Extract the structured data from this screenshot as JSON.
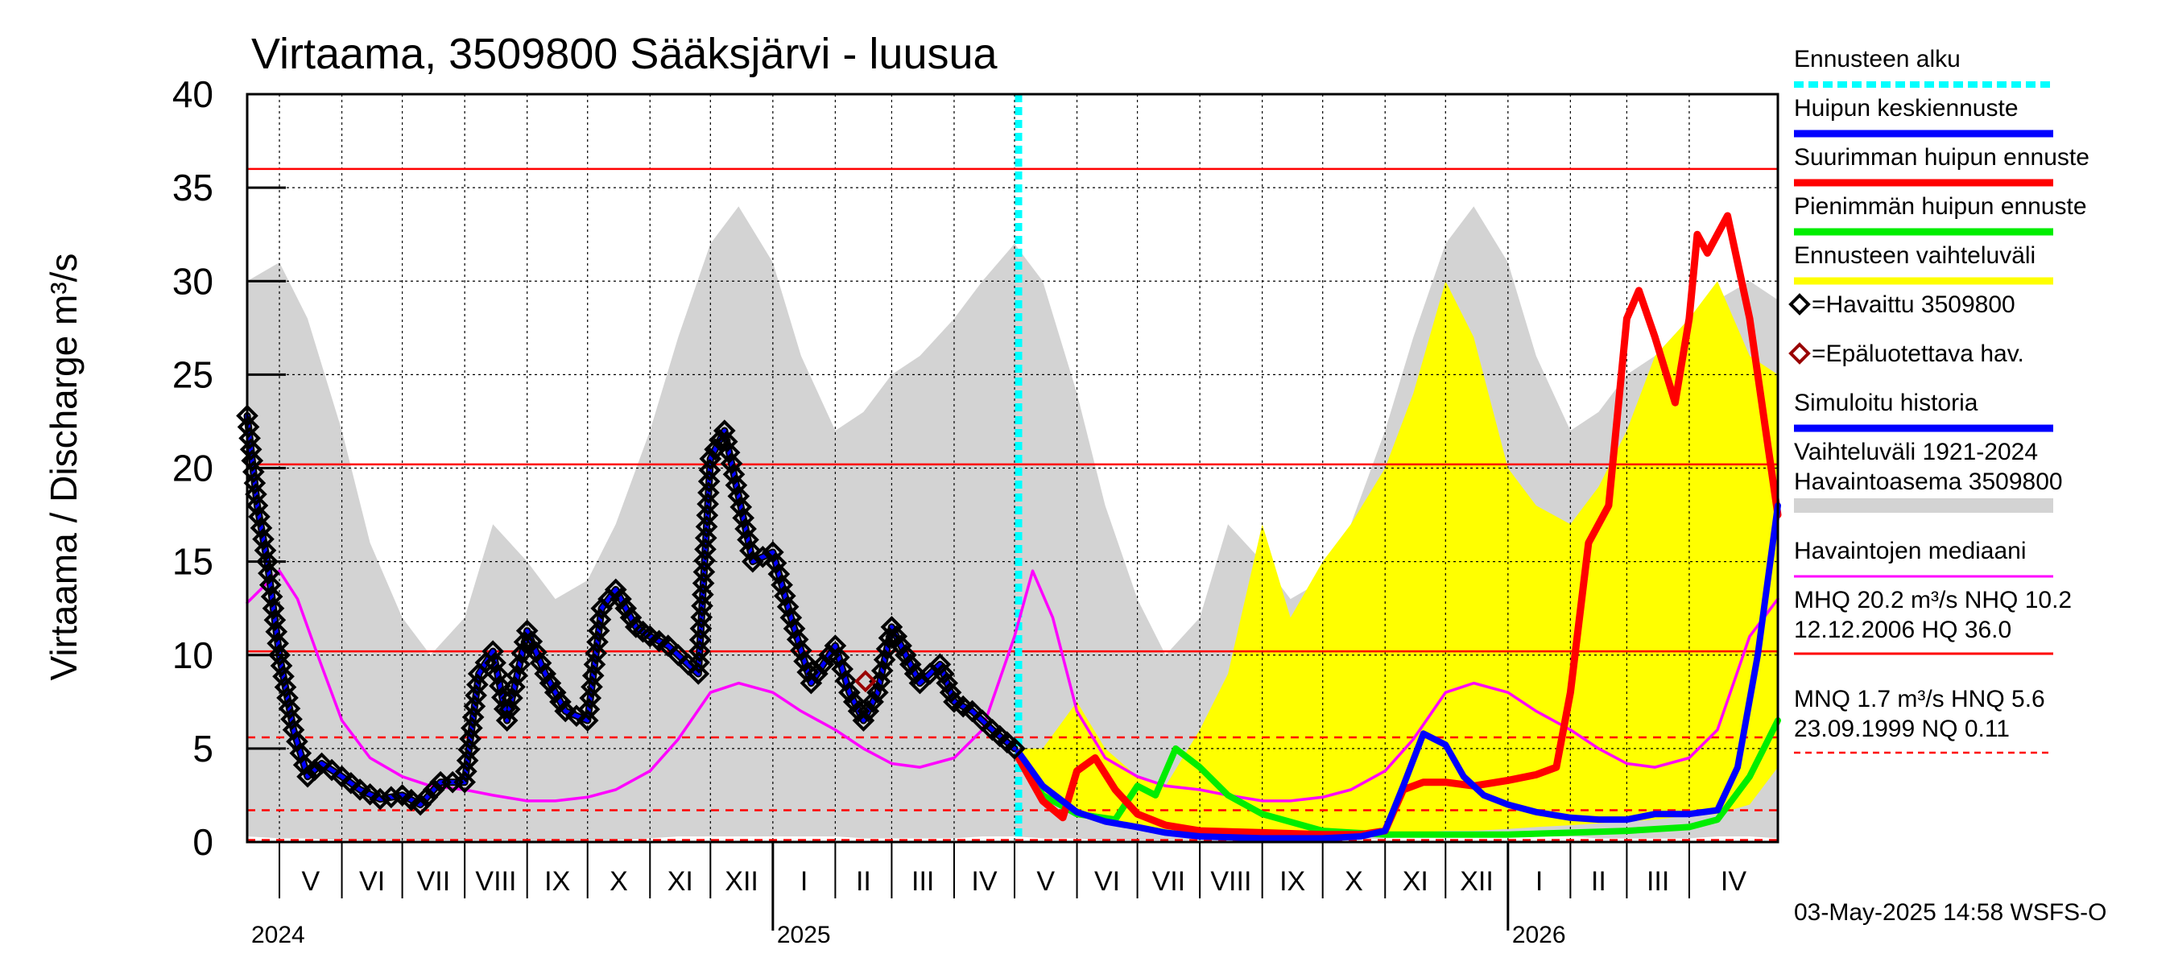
{
  "chart_data": {
    "type": "line",
    "title": "Virtaama, 3509800 Sääksjärvi - luusua",
    "ylabel": "Virtaama / Discharge    m³/s",
    "ylim": [
      0,
      40
    ],
    "yticks": [
      0,
      5,
      10,
      15,
      20,
      25,
      30,
      35,
      40
    ],
    "x_range": [
      "2024-04-15",
      "2026-05-15"
    ],
    "months": [
      {
        "label": "V",
        "start": "2024-05-01"
      },
      {
        "label": "VI",
        "start": "2024-06-01"
      },
      {
        "label": "VII",
        "start": "2024-07-01"
      },
      {
        "label": "VIII",
        "start": "2024-08-01"
      },
      {
        "label": "IX",
        "start": "2024-09-01"
      },
      {
        "label": "X",
        "start": "2024-10-01"
      },
      {
        "label": "XI",
        "start": "2024-11-01"
      },
      {
        "label": "XII",
        "start": "2024-12-01"
      },
      {
        "label": "I",
        "start": "2025-01-01"
      },
      {
        "label": "II",
        "start": "2025-02-01"
      },
      {
        "label": "III",
        "start": "2025-03-01"
      },
      {
        "label": "IV",
        "start": "2025-04-01"
      },
      {
        "label": "V",
        "start": "2025-05-01"
      },
      {
        "label": "VI",
        "start": "2025-06-01"
      },
      {
        "label": "VII",
        "start": "2025-07-01"
      },
      {
        "label": "VIII",
        "start": "2025-08-01"
      },
      {
        "label": "IX",
        "start": "2025-09-01"
      },
      {
        "label": "X",
        "start": "2025-10-01"
      },
      {
        "label": "XI",
        "start": "2025-11-01"
      },
      {
        "label": "XII",
        "start": "2025-12-01"
      },
      {
        "label": "I",
        "start": "2026-01-01"
      },
      {
        "label": "II",
        "start": "2026-02-01"
      },
      {
        "label": "III",
        "start": "2026-03-01"
      },
      {
        "label": "IV",
        "start": "2026-04-01"
      }
    ],
    "years": [
      {
        "label": "2024",
        "date": "2024-04-15"
      },
      {
        "label": "2025",
        "date": "2025-01-01"
      },
      {
        "label": "2026",
        "date": "2026-01-01"
      }
    ],
    "forecast_start": "2025-05-03",
    "reference_lines": [
      {
        "name": "HQ",
        "value": 36.0,
        "style": "solid"
      },
      {
        "name": "MHQ",
        "value": 20.2,
        "style": "solid"
      },
      {
        "name": "NHQ",
        "value": 10.2,
        "style": "solid"
      },
      {
        "name": "HNQ",
        "value": 5.6,
        "style": "dashed"
      },
      {
        "name": "MNQ",
        "value": 1.7,
        "style": "dashed"
      },
      {
        "name": "NQ",
        "value": 0.11,
        "style": "dashed"
      }
    ],
    "series": [
      {
        "name": "Vaihteluväli 1921-2024 Havaintoasema 3509800",
        "type": "band",
        "color": "#d3d3d3",
        "x": [
          "2024-04-15",
          "2024-05-01",
          "2024-05-15",
          "2024-06-01",
          "2024-06-15",
          "2024-07-01",
          "2024-07-15",
          "2024-08-01",
          "2024-08-15",
          "2024-09-01",
          "2024-09-15",
          "2024-10-01",
          "2024-10-15",
          "2024-11-01",
          "2024-11-15",
          "2024-12-01",
          "2024-12-15",
          "2025-01-01",
          "2025-01-15",
          "2025-02-01",
          "2025-02-15",
          "2025-03-01",
          "2025-03-15",
          "2025-04-01",
          "2025-04-15",
          "2025-05-01",
          "2025-05-15",
          "2025-06-01",
          "2025-06-15",
          "2025-07-01",
          "2025-07-15",
          "2025-08-01",
          "2025-08-15",
          "2025-09-01",
          "2025-09-15",
          "2025-10-01",
          "2025-10-15",
          "2025-11-01",
          "2025-11-15",
          "2025-12-01",
          "2025-12-15",
          "2026-01-01",
          "2026-01-15",
          "2026-02-01",
          "2026-02-15",
          "2026-03-01",
          "2026-03-15",
          "2026-04-01",
          "2026-04-15",
          "2026-05-01",
          "2026-05-15"
        ],
        "low": [
          0.3,
          0.2,
          0.2,
          0.1,
          0.1,
          0.1,
          0.1,
          0.1,
          0.1,
          0.0,
          0.0,
          0.1,
          0.1,
          0.2,
          0.3,
          0.3,
          0.3,
          0.3,
          0.3,
          0.3,
          0.2,
          0.2,
          0.2,
          0.2,
          0.3,
          0.3,
          0.2,
          0.2,
          0.1,
          0.1,
          0.1,
          0.1,
          0.1,
          0.0,
          0.0,
          0.1,
          0.1,
          0.2,
          0.3,
          0.3,
          0.3,
          0.3,
          0.3,
          0.3,
          0.2,
          0.2,
          0.2,
          0.2,
          0.3,
          0.3,
          0.2
        ],
        "high": [
          30.0,
          31.0,
          28.0,
          22.0,
          16.0,
          12.0,
          10.0,
          12.0,
          17.0,
          15.0,
          13.0,
          14.0,
          17.0,
          22.0,
          27.0,
          32.0,
          34.0,
          31.0,
          26.0,
          22.0,
          23.0,
          25.0,
          26.0,
          28.0,
          30.0,
          32.0,
          30.0,
          24.0,
          18.0,
          13.0,
          10.0,
          12.0,
          17.0,
          15.0,
          13.0,
          14.0,
          17.0,
          22.0,
          27.0,
          32.0,
          34.0,
          31.0,
          26.0,
          22.0,
          23.0,
          25.0,
          26.0,
          28.0,
          29.0,
          30.0,
          29.0
        ]
      },
      {
        "name": "Ennusteen vaihteluväli",
        "type": "band",
        "color": "#ffff00",
        "x": [
          "2025-05-03",
          "2025-05-15",
          "2025-06-01",
          "2025-06-15",
          "2025-07-01",
          "2025-07-15",
          "2025-08-01",
          "2025-08-15",
          "2025-09-01",
          "2025-09-15",
          "2025-10-01",
          "2025-10-15",
          "2025-11-01",
          "2025-11-15",
          "2025-12-01",
          "2025-12-15",
          "2026-01-01",
          "2026-01-15",
          "2026-02-01",
          "2026-02-15",
          "2026-03-01",
          "2026-03-15",
          "2026-04-01",
          "2026-04-15",
          "2026-05-01",
          "2026-05-15"
        ],
        "low": [
          4.8,
          2.5,
          1.5,
          1.0,
          0.8,
          0.6,
          0.5,
          0.5,
          0.4,
          0.4,
          0.4,
          0.5,
          0.5,
          0.5,
          0.6,
          0.6,
          0.7,
          0.8,
          0.9,
          1.0,
          1.1,
          1.2,
          1.4,
          1.5,
          2.0,
          4.0
        ],
        "high": [
          5.0,
          5.0,
          7.5,
          5.0,
          3.5,
          3.0,
          6.0,
          9.0,
          17.0,
          12.0,
          15.0,
          17.0,
          20.0,
          24.0,
          30.0,
          27.0,
          20.0,
          18.0,
          17.0,
          19.0,
          22.0,
          26.0,
          28.0,
          30.0,
          26.0,
          25.0
        ]
      },
      {
        "name": "Havaintojen mediaani",
        "color": "#ff00ff",
        "x": [
          "2024-04-15",
          "2024-05-01",
          "2024-05-10",
          "2024-05-20",
          "2024-06-01",
          "2024-06-15",
          "2024-07-01",
          "2024-07-15",
          "2024-08-01",
          "2024-08-15",
          "2024-09-01",
          "2024-09-15",
          "2024-10-01",
          "2024-10-15",
          "2024-11-01",
          "2024-11-15",
          "2024-12-01",
          "2024-12-15",
          "2025-01-01",
          "2025-01-15",
          "2025-02-01",
          "2025-02-15",
          "2025-03-01",
          "2025-03-15",
          "2025-04-01",
          "2025-04-15",
          "2025-05-01",
          "2025-05-10",
          "2025-05-20",
          "2025-06-01",
          "2025-06-15",
          "2025-07-01",
          "2025-07-15",
          "2025-08-01",
          "2025-08-15",
          "2025-09-01",
          "2025-09-15",
          "2025-10-01",
          "2025-10-15",
          "2025-11-01",
          "2025-11-15",
          "2025-12-01",
          "2025-12-15",
          "2026-01-01",
          "2026-01-15",
          "2026-02-01",
          "2026-02-15",
          "2026-03-01",
          "2026-03-15",
          "2026-04-01",
          "2026-04-15",
          "2026-05-01",
          "2026-05-15"
        ],
        "values": [
          12.8,
          14.5,
          13.0,
          10.0,
          6.5,
          4.5,
          3.5,
          3.0,
          2.8,
          2.5,
          2.2,
          2.2,
          2.4,
          2.8,
          3.8,
          5.5,
          8.0,
          8.5,
          8.0,
          7.0,
          6.0,
          5.0,
          4.2,
          4.0,
          4.5,
          6.0,
          11.0,
          14.5,
          12.0,
          7.0,
          4.5,
          3.5,
          3.0,
          2.8,
          2.5,
          2.2,
          2.2,
          2.4,
          2.8,
          3.8,
          5.5,
          8.0,
          8.5,
          8.0,
          7.0,
          6.0,
          5.0,
          4.2,
          4.0,
          4.5,
          6.0,
          11.0,
          13.0
        ]
      },
      {
        "name": "Havaittu 3509800",
        "color": "#000000",
        "marker": "diamond",
        "x": [
          "2024-04-15",
          "2024-04-20",
          "2024-04-25",
          "2024-05-01",
          "2024-05-08",
          "2024-05-15",
          "2024-05-22",
          "2024-06-01",
          "2024-06-10",
          "2024-06-20",
          "2024-07-01",
          "2024-07-10",
          "2024-07-20",
          "2024-08-01",
          "2024-08-08",
          "2024-08-15",
          "2024-08-22",
          "2024-09-01",
          "2024-09-10",
          "2024-09-20",
          "2024-10-01",
          "2024-10-08",
          "2024-10-15",
          "2024-10-25",
          "2024-11-01",
          "2024-11-10",
          "2024-11-20",
          "2024-11-25",
          "2024-12-01",
          "2024-12-08",
          "2024-12-15",
          "2024-12-22",
          "2025-01-01",
          "2025-01-10",
          "2025-01-20",
          "2025-02-01",
          "2025-02-08",
          "2025-02-15",
          "2025-02-22",
          "2025-03-01",
          "2025-03-08",
          "2025-03-15",
          "2025-03-25",
          "2025-04-01",
          "2025-04-10",
          "2025-04-20",
          "2025-05-01"
        ],
        "values": [
          22.8,
          18.0,
          15.0,
          10.0,
          6.0,
          3.5,
          4.2,
          3.5,
          2.8,
          2.3,
          2.5,
          2.0,
          3.2,
          3.2,
          9.0,
          10.2,
          6.5,
          11.3,
          9.0,
          7.0,
          6.5,
          12.5,
          13.5,
          11.5,
          11.0,
          10.5,
          9.5,
          9.0,
          20.5,
          22.0,
          18.5,
          15.0,
          15.5,
          12.0,
          8.5,
          10.5,
          8.0,
          6.5,
          8.0,
          11.5,
          10.0,
          8.5,
          9.5,
          7.5,
          7.0,
          6.0,
          5.0
        ]
      },
      {
        "name": "Epäluotettava hav.",
        "color": "#990000",
        "marker": "diamond",
        "x": [
          "2025-02-16"
        ],
        "values": [
          8.6
        ]
      },
      {
        "name": "Simuloitu historia",
        "color": "#0000ff",
        "x": [
          "2024-04-15",
          "2024-04-20",
          "2024-04-25",
          "2024-05-01",
          "2024-05-08",
          "2024-05-15",
          "2024-05-22",
          "2024-06-01",
          "2024-06-10",
          "2024-06-20",
          "2024-07-01",
          "2024-07-10",
          "2024-07-20",
          "2024-08-01",
          "2024-08-08",
          "2024-08-15",
          "2024-08-22",
          "2024-09-01",
          "2024-09-10",
          "2024-09-20",
          "2024-10-01",
          "2024-10-08",
          "2024-10-15",
          "2024-10-25",
          "2024-11-01",
          "2024-11-10",
          "2024-11-20",
          "2024-11-25",
          "2024-12-01",
          "2024-12-08",
          "2024-12-15",
          "2024-12-22",
          "2025-01-01",
          "2025-01-10",
          "2025-01-20",
          "2025-02-01",
          "2025-02-08",
          "2025-02-15",
          "2025-02-22",
          "2025-03-01",
          "2025-03-08",
          "2025-03-15",
          "2025-03-25",
          "2025-04-01",
          "2025-04-10",
          "2025-04-20",
          "2025-05-01"
        ],
        "values": [
          22.8,
          18.0,
          15.0,
          10.0,
          6.0,
          3.5,
          4.2,
          3.5,
          2.8,
          2.3,
          2.5,
          2.0,
          3.2,
          3.2,
          9.0,
          10.2,
          6.5,
          11.3,
          9.0,
          7.0,
          6.5,
          12.5,
          13.5,
          11.5,
          11.0,
          10.5,
          9.5,
          9.0,
          20.5,
          22.0,
          18.5,
          15.0,
          15.5,
          12.0,
          8.5,
          10.5,
          8.0,
          6.5,
          8.0,
          11.5,
          10.0,
          8.5,
          9.5,
          7.5,
          7.0,
          6.0,
          5.0
        ]
      },
      {
        "name": "Suurimman huipun ennuste",
        "color": "#ff0000",
        "x": [
          "2025-05-03",
          "2025-05-15",
          "2025-05-25",
          "2025-06-01",
          "2025-06-10",
          "2025-06-20",
          "2025-07-01",
          "2025-07-15",
          "2025-08-01",
          "2025-09-01",
          "2025-10-01",
          "2025-10-20",
          "2025-11-01",
          "2025-11-10",
          "2025-11-20",
          "2025-12-01",
          "2025-12-15",
          "2026-01-01",
          "2026-01-15",
          "2026-01-25",
          "2026-02-01",
          "2026-02-10",
          "2026-02-20",
          "2026-03-01",
          "2026-03-07",
          "2026-03-15",
          "2026-03-25",
          "2026-04-01",
          "2026-04-05",
          "2026-04-10",
          "2026-04-20",
          "2026-05-01",
          "2026-05-15"
        ],
        "values": [
          4.5,
          2.2,
          1.3,
          3.8,
          4.5,
          2.8,
          1.5,
          0.9,
          0.6,
          0.5,
          0.4,
          0.4,
          0.6,
          2.8,
          3.2,
          3.2,
          3.0,
          3.3,
          3.6,
          4.0,
          8.0,
          16.0,
          18.0,
          28.0,
          29.5,
          27.0,
          23.5,
          28.0,
          32.5,
          31.5,
          33.5,
          28.0,
          17.5
        ]
      },
      {
        "name": "Pienimmän huipun ennuste",
        "color": "#00ee00",
        "x": [
          "2025-05-03",
          "2025-05-15",
          "2025-06-01",
          "2025-06-20",
          "2025-07-01",
          "2025-07-10",
          "2025-07-20",
          "2025-08-01",
          "2025-08-15",
          "2025-09-01",
          "2025-10-01",
          "2025-11-01",
          "2025-12-01",
          "2026-01-01",
          "2026-02-01",
          "2026-03-01",
          "2026-04-01",
          "2026-04-15",
          "2026-05-01",
          "2026-05-15"
        ],
        "values": [
          4.5,
          2.5,
          1.5,
          1.2,
          3.0,
          2.5,
          5.0,
          4.0,
          2.5,
          1.5,
          0.6,
          0.4,
          0.4,
          0.4,
          0.5,
          0.6,
          0.8,
          1.2,
          3.5,
          6.5
        ]
      },
      {
        "name": "Huipun keskiennuste",
        "color": "#0000ff",
        "x": [
          "2025-05-03",
          "2025-05-15",
          "2025-06-01",
          "2025-06-15",
          "2025-07-01",
          "2025-07-15",
          "2025-08-01",
          "2025-09-01",
          "2025-10-01",
          "2025-10-20",
          "2025-11-01",
          "2025-11-10",
          "2025-11-20",
          "2025-12-01",
          "2025-12-10",
          "2025-12-20",
          "2026-01-01",
          "2026-01-15",
          "2026-02-01",
          "2026-02-15",
          "2026-03-01",
          "2026-03-15",
          "2026-04-01",
          "2026-04-15",
          "2026-04-25",
          "2026-05-05",
          "2026-05-15"
        ],
        "values": [
          4.8,
          3.0,
          1.6,
          1.1,
          0.8,
          0.5,
          0.3,
          0.2,
          0.2,
          0.3,
          0.6,
          3.0,
          5.8,
          5.2,
          3.5,
          2.5,
          2.0,
          1.6,
          1.3,
          1.2,
          1.2,
          1.5,
          1.5,
          1.7,
          4.0,
          10.0,
          18.0
        ]
      }
    ],
    "legend": [
      {
        "label": "Ennusteen alku",
        "color": "#00ffff",
        "style": "dashed"
      },
      {
        "label": "Huipun keskiennuste",
        "color": "#0000ff",
        "style": "line"
      },
      {
        "label": "Suurimman huipun ennuste",
        "color": "#ff0000",
        "style": "line"
      },
      {
        "label": "Pienimmän huipun ennuste",
        "color": "#00ee00",
        "style": "line"
      },
      {
        "label": "Ennusteen vaihteluväli",
        "color": "#ffff00",
        "style": "line"
      },
      {
        "label": "=Havaittu 3509800",
        "color": "#000000",
        "style": "marker"
      },
      {
        "label": "=Epäluotettava hav.",
        "color": "#990000",
        "style": "marker"
      },
      {
        "label": "Simuloitu historia",
        "color": "#0000ff",
        "style": "line"
      },
      {
        "label": "Vaihteluväli 1921-2024",
        "label2": " Havaintoasema 3509800",
        "color": "#d3d3d3",
        "style": "line"
      },
      {
        "label": "Havaintojen mediaani",
        "color": "#ff00ff",
        "style": "thin"
      },
      {
        "label": "MHQ 20.2 m³/s NHQ 10.2",
        "label2": "12.12.2006 HQ 36.0",
        "color": "#ff0000",
        "style": "thin"
      },
      {
        "label": "MNQ  1.7 m³/s HNQ  5.6",
        "label2": "23.09.1999 NQ 0.11",
        "color": "#ff0000",
        "style": "dashed-thin"
      }
    ],
    "footer": "03-May-2025 14:58 WSFS-O",
    "grid": true
  }
}
